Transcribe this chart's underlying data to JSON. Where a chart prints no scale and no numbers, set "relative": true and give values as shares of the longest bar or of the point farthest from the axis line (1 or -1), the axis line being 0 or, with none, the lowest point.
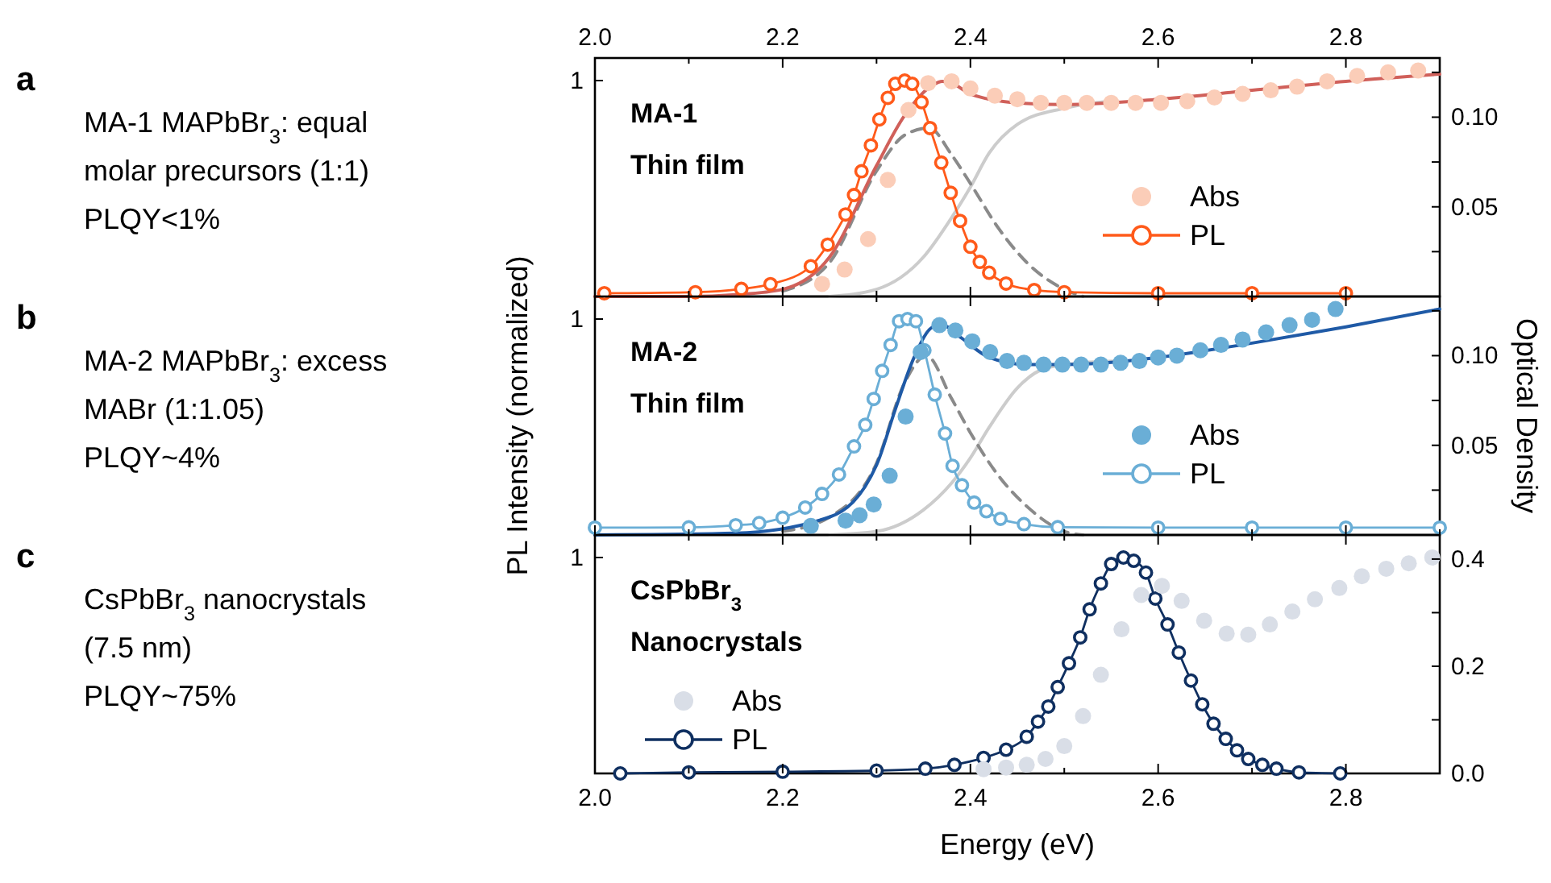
{
  "chart_data": [
    {
      "type": "line",
      "relative": true,
      "title": "MA-1",
      "subtitle": "Thin film",
      "annotations": [
        "a",
        "MA-1 MAPbBr$_{3}$: equal",
        "molar precursors (1:1)",
        "PLQY<1%",
        "1"
      ],
      "xlim": [
        2.0,
        2.9
      ],
      "xticks": [
        {
          "value": 2.0,
          "label": null
        },
        {
          "value": 2.1,
          "label": null
        },
        {
          "value": 2.2,
          "label": null
        },
        {
          "value": 2.3,
          "label": null
        },
        {
          "value": 2.4,
          "label": null
        },
        {
          "value": 2.5,
          "label": null
        },
        {
          "value": 2.6,
          "label": null
        },
        {
          "value": 2.7,
          "label": null
        },
        {
          "value": 2.8,
          "label": null
        },
        {
          "value": 2.9,
          "label": null
        }
      ],
      "tick_labels": "y",
      "x2lim": [
        2.0,
        2.9
      ],
      "x2ticks": [
        {
          "value": 2.0,
          "label": "2.0"
        },
        {
          "value": 2.1,
          "label": null
        },
        2.2,
        {
          "value": 2.3,
          "label": null
        },
        2.4,
        {
          "value": 2.5,
          "label": null
        },
        2.6,
        {
          "value": 2.7,
          "label": null
        },
        2.8,
        {
          "value": 2.9,
          "label": null
        }
      ],
      "y2lim": [
        0,
        0.133
      ],
      "y2ticks": [
        {
          "value": 0.025,
          "label": null
        },
        0.05,
        {
          "value": 0.075,
          "label": null
        },
        {
          "value": 0.1,
          "label": "0.10"
        },
        {
          "value": 0.125,
          "label": null
        }
      ],
      "legend": "bottom right",
      "series": [
        {
          "color": "#cccccc",
          "axis": "y2",
          "marker": "none",
          "line_style": "solid",
          "x": [
            2.25,
            2.3,
            2.35,
            2.38,
            2.4,
            2.42,
            2.45,
            2.5,
            2.55
          ],
          "values": [
            0.0,
            0.004,
            0.022,
            0.044,
            0.061,
            0.08,
            0.096,
            0.105,
            0.109
          ]
        },
        {
          "color": "#8a8a8a",
          "axis": "y2",
          "marker": "none",
          "line_style": "dashed",
          "x": [
            2.2,
            2.25,
            2.3,
            2.33,
            2.356,
            2.38,
            2.4,
            2.43,
            2.46,
            2.5,
            2.52
          ],
          "values": [
            0.003,
            0.019,
            0.07,
            0.09,
            0.094,
            0.079,
            0.063,
            0.038,
            0.019,
            0.004,
            0
          ]
        },
        {
          "name": "Abs",
          "type": "scatter",
          "color": "#fbcdb8",
          "axis": "y2",
          "marker": "circle",
          "x": [
            2.242,
            2.266,
            2.291,
            2.312,
            2.334,
            2.355,
            2.38,
            2.4,
            2.426,
            2.45,
            2.475,
            2.5,
            2.524,
            2.55,
            2.576,
            2.603,
            2.631,
            2.66,
            2.69,
            2.72,
            2.748,
            2.78,
            2.812,
            2.845,
            2.877
          ],
          "values": [
            0.007,
            0.015,
            0.032,
            0.065,
            0.104,
            0.119,
            0.12,
            0.116,
            0.112,
            0.11,
            0.108,
            0.108,
            0.108,
            0.108,
            0.108,
            0.108,
            0.109,
            0.111,
            0.113,
            0.115,
            0.117,
            0.12,
            0.123,
            0.125,
            0.126
          ]
        },
        {
          "color": "#d0605a",
          "axis": "y2",
          "marker": "none",
          "line_style": "solid",
          "x": [
            2.0,
            2.1,
            2.15,
            2.2,
            2.25,
            2.3,
            2.33,
            2.36,
            2.37,
            2.38,
            2.4,
            2.45,
            2.5,
            2.6,
            2.7,
            2.8,
            2.9
          ],
          "values": [
            0,
            0,
            0.001,
            0.004,
            0.022,
            0.073,
            0.101,
            0.118,
            0.12,
            0.119,
            0.113,
            0.108,
            0.107,
            0.11,
            0.115,
            0.12,
            0.124
          ]
        },
        {
          "name": "PL",
          "color": "#ff5a1a",
          "marker": "circle",
          "line_style": "solid",
          "x": [
            2.01,
            2.107,
            2.156,
            2.187,
            2.23,
            2.248,
            2.267,
            2.276,
            2.284,
            2.294,
            2.303,
            2.312,
            2.32,
            2.33,
            2.338,
            2.348,
            2.357,
            2.369,
            2.379,
            2.389,
            2.4,
            2.41,
            2.42,
            2.438,
            2.468,
            2.5,
            2.6,
            2.7,
            2.8
          ],
          "values": [
            0.015,
            0.02,
            0.035,
            0.057,
            0.14,
            0.24,
            0.38,
            0.47,
            0.58,
            0.7,
            0.82,
            0.92,
            0.985,
            1.0,
            0.985,
            0.9,
            0.78,
            0.62,
            0.48,
            0.35,
            0.23,
            0.16,
            0.11,
            0.06,
            0.03,
            0.02,
            0.015,
            0.015,
            0.015
          ]
        }
      ]
    },
    {
      "type": "line",
      "relative": true,
      "title": "MA-2",
      "subtitle": "Thin film",
      "annotations": [
        "b",
        "MA-2 MAPbBr$_{3}$: excess",
        "MABr (1:1.05)",
        "PLQY~4%",
        "1"
      ],
      "ylabel": "PL Intensity (normalized)",
      "y2label": "Optical Density",
      "xlim": [
        2.0,
        2.9
      ],
      "xticks": [
        {
          "value": 2.0,
          "label": null
        },
        {
          "value": 2.1,
          "label": null
        },
        {
          "value": 2.2,
          "label": null
        },
        {
          "value": 2.3,
          "label": null
        },
        {
          "value": 2.4,
          "label": null
        },
        {
          "value": 2.5,
          "label": null
        },
        {
          "value": 2.6,
          "label": null
        },
        {
          "value": 2.7,
          "label": null
        },
        {
          "value": 2.8,
          "label": null
        },
        {
          "value": 2.9,
          "label": null
        }
      ],
      "tick_labels": "y",
      "y2lim": [
        0,
        0.133
      ],
      "y2ticks": [
        {
          "value": 0.025,
          "label": null
        },
        0.05,
        {
          "value": 0.075,
          "label": null
        },
        {
          "value": 0.1,
          "label": "0.10"
        },
        {
          "value": 0.125,
          "label": null
        }
      ],
      "legend": "bottom right",
      "series": [
        {
          "color": "#cccccc",
          "axis": "y2",
          "marker": "none",
          "line_style": "solid",
          "x": [
            2.25,
            2.3,
            2.35,
            2.38,
            2.4,
            2.42,
            2.45,
            2.48,
            2.52,
            2.56
          ],
          "values": [
            0,
            0.002,
            0.014,
            0.029,
            0.043,
            0.06,
            0.082,
            0.093,
            0.096,
            0.097
          ]
        },
        {
          "color": "#8a8a8a",
          "axis": "y2",
          "marker": "none",
          "line_style": "dashed",
          "x": [
            2.2,
            2.25,
            2.3,
            2.33,
            2.353,
            2.38,
            2.4,
            2.43,
            2.46,
            2.5,
            2.52
          ],
          "values": [
            0.002,
            0.01,
            0.04,
            0.085,
            0.1,
            0.076,
            0.057,
            0.033,
            0.016,
            0.002,
            0
          ]
        },
        {
          "name": "Abs",
          "type": "scatter",
          "color": "#6aaed6",
          "axis": "y2",
          "marker": "circle",
          "x": [
            2.23,
            2.267,
            2.282,
            2.297,
            2.314,
            2.331,
            2.347,
            2.367,
            2.384,
            2.402,
            2.421,
            2.439,
            2.457,
            2.478,
            2.498,
            2.518,
            2.539,
            2.56,
            2.58,
            2.6,
            2.62,
            2.645,
            2.667,
            2.69,
            2.715,
            2.74,
            2.764,
            2.789
          ],
          "values": [
            0.005,
            0.008,
            0.011,
            0.017,
            0.033,
            0.066,
            0.102,
            0.117,
            0.114,
            0.108,
            0.102,
            0.097,
            0.096,
            0.095,
            0.095,
            0.095,
            0.095,
            0.096,
            0.097,
            0.099,
            0.1,
            0.103,
            0.106,
            0.109,
            0.113,
            0.117,
            0.12,
            0.126
          ]
        },
        {
          "color": "#1f5aa6",
          "axis": "y2",
          "marker": "none",
          "line_style": "solid",
          "x": [
            2.0,
            2.15,
            2.25,
            2.3,
            2.32,
            2.34,
            2.36,
            2.37,
            2.39,
            2.42,
            2.46,
            2.5,
            2.6,
            2.7,
            2.8,
            2.9
          ],
          "values": [
            0,
            0.001,
            0.01,
            0.039,
            0.07,
            0.099,
            0.116,
            0.117,
            0.11,
            0.099,
            0.095,
            0.095,
            0.099,
            0.107,
            0.116,
            0.126
          ]
        },
        {
          "name": "PL",
          "color": "#6aaed6",
          "marker": "circle",
          "line_style": "solid",
          "x": [
            2.0,
            2.1,
            2.15,
            2.175,
            2.2,
            2.224,
            2.242,
            2.26,
            2.276,
            2.288,
            2.297,
            2.306,
            2.315,
            2.324,
            2.333,
            2.342,
            2.351,
            2.362,
            2.373,
            2.381,
            2.391,
            2.404,
            2.417,
            2.432,
            2.457,
            2.493,
            2.6,
            2.7,
            2.8,
            2.9
          ],
          "values": [
            0.034,
            0.035,
            0.045,
            0.055,
            0.08,
            0.127,
            0.19,
            0.28,
            0.41,
            0.51,
            0.63,
            0.76,
            0.88,
            0.99,
            1.0,
            0.99,
            0.855,
            0.65,
            0.47,
            0.32,
            0.23,
            0.15,
            0.11,
            0.075,
            0.05,
            0.036,
            0.034,
            0.034,
            0.034,
            0.034
          ]
        }
      ]
    },
    {
      "type": "line",
      "relative": true,
      "title": "CsPbBr$_{3}$",
      "subtitle": "Nanocrystals",
      "annotations": [
        "c",
        "CsPbBr$_{3}$ nanocrystals",
        "(7.5 nm)",
        "PLQY~75%",
        "1"
      ],
      "xlabel": "Energy (eV)",
      "xlim": [
        2.0,
        2.9
      ],
      "xticks": [
        {
          "value": 2.0,
          "label": "2.0"
        },
        {
          "value": 2.1,
          "label": null
        },
        2.2,
        {
          "value": 2.3,
          "label": null
        },
        2.4,
        {
          "value": 2.5,
          "label": null
        },
        2.6,
        {
          "value": 2.7,
          "label": null
        },
        2.8,
        {
          "value": 2.9,
          "label": null
        }
      ],
      "y2lim": [
        0,
        0.445
      ],
      "y2ticks": [
        {
          "value": 0,
          "label": "0.0"
        },
        {
          "value": 0.1,
          "label": null
        },
        0.2,
        {
          "value": 0.3,
          "label": null
        },
        0.4
      ],
      "legend": "bottom left",
      "series": [
        {
          "name": "Abs",
          "type": "scatter",
          "color": "#d9dee7",
          "axis": "y2",
          "marker": "circle",
          "x": [
            2.414,
            2.438,
            2.46,
            2.48,
            2.5,
            2.52,
            2.539,
            2.561,
            2.582,
            2.604,
            2.625,
            2.649,
            2.673,
            2.696,
            2.719,
            2.743,
            2.767,
            2.793,
            2.817,
            2.843,
            2.867,
            2.892
          ],
          "values": [
            0.008,
            0.011,
            0.016,
            0.027,
            0.051,
            0.107,
            0.184,
            0.269,
            0.333,
            0.35,
            0.322,
            0.285,
            0.261,
            0.259,
            0.278,
            0.302,
            0.325,
            0.346,
            0.368,
            0.382,
            0.392,
            0.403
          ]
        },
        {
          "name": "PL",
          "color": "#0f2f60",
          "marker": "circle",
          "line_style": "solid",
          "x": [
            2.027,
            2.1,
            2.2,
            2.3,
            2.352,
            2.383,
            2.414,
            2.438,
            2.46,
            2.472,
            2.483,
            2.493,
            2.505,
            2.517,
            2.527,
            2.539,
            2.55,
            2.563,
            2.574,
            2.587,
            2.597,
            2.61,
            2.622,
            2.635,
            2.647,
            2.659,
            2.672,
            2.684,
            2.696,
            2.711,
            2.726,
            2.75,
            2.794
          ],
          "values": [
            0,
            0.005,
            0.008,
            0.013,
            0.022,
            0.04,
            0.072,
            0.11,
            0.17,
            0.24,
            0.31,
            0.4,
            0.51,
            0.63,
            0.76,
            0.88,
            0.97,
            1.0,
            0.985,
            0.93,
            0.81,
            0.69,
            0.56,
            0.43,
            0.32,
            0.23,
            0.16,
            0.107,
            0.067,
            0.04,
            0.022,
            0.005,
            0
          ]
        }
      ]
    }
  ]
}
